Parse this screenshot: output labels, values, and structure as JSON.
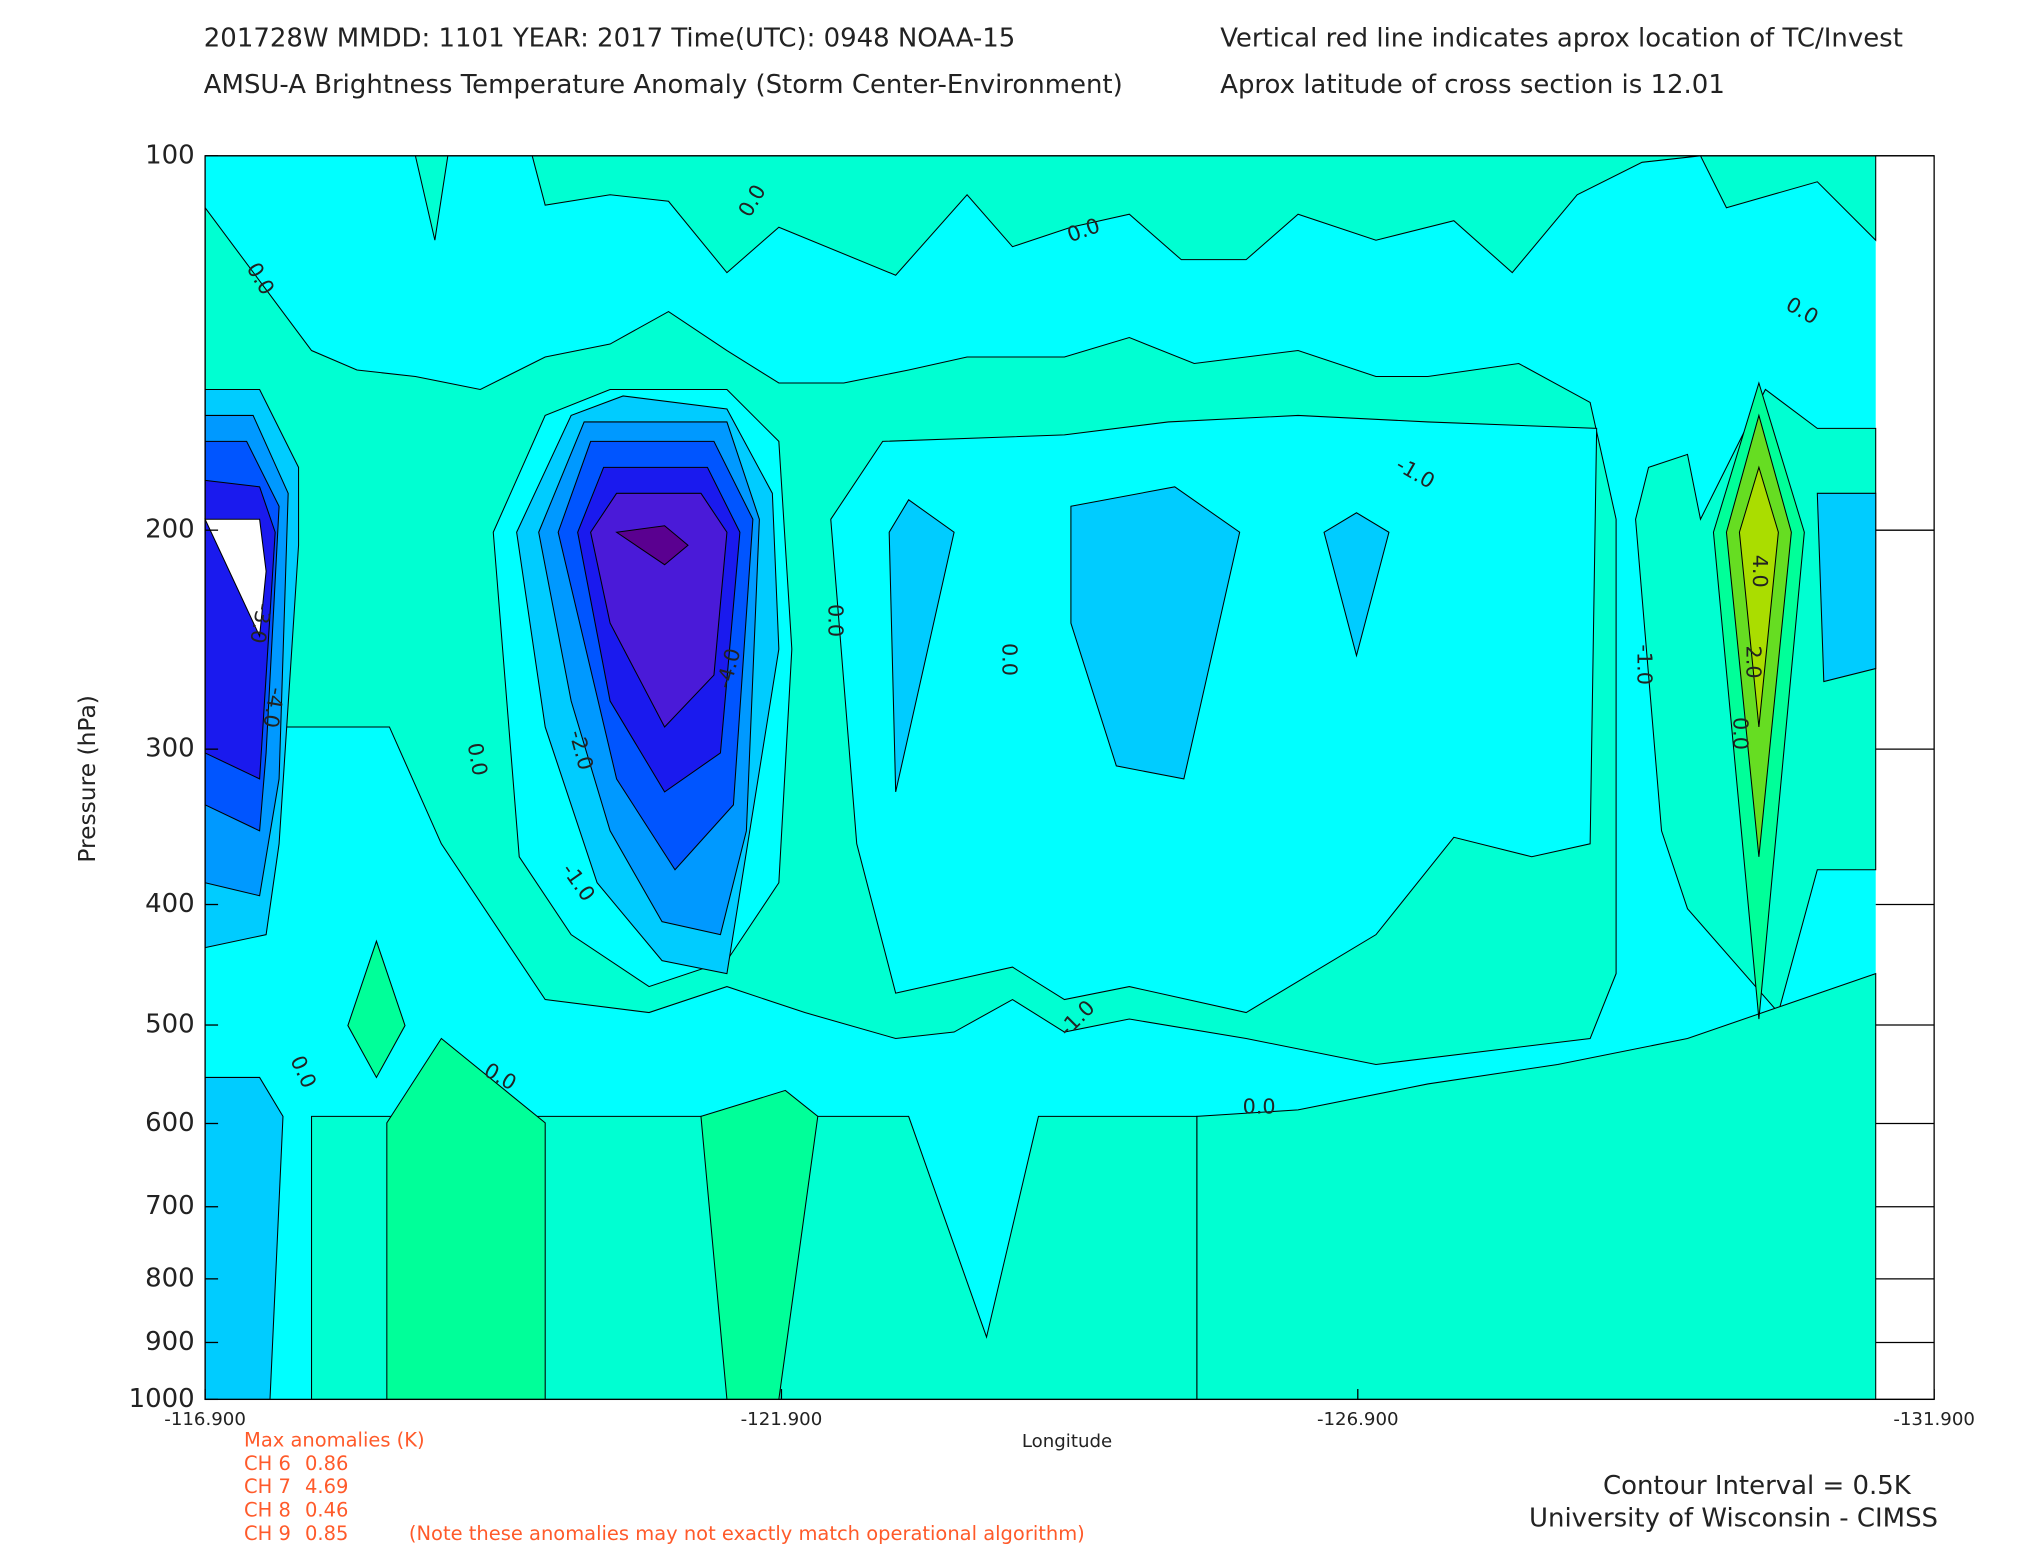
{
  "chart_data": {
    "type": "contour",
    "title_left_1": "201728W  MMDD: 1101 YEAR: 2017 Time(UTC): 0948 NOAA-15",
    "title_left_2": "AMSU-A Brightness Temperature Anomaly (Storm Center-Environment)",
    "title_right_1": "Vertical red line indicates aprox location of TC/Invest",
    "title_right_2": "Aprox latitude of cross section is 12.01",
    "ylabel": "Pressure (hPa)",
    "xlabel": "Longitude",
    "log_y": true,
    "ylim": [
      1000,
      100
    ],
    "yticks": [
      100,
      200,
      300,
      400,
      500,
      600,
      700,
      800,
      900,
      1000
    ],
    "xlim": [
      -116.9,
      -131.9
    ],
    "xticks": [
      {
        "value": -116.9,
        "label": "-116.900"
      },
      {
        "value": -121.9,
        "label": "-121.900"
      },
      {
        "value": -126.9,
        "label": "-126.900"
      },
      {
        "value": -131.9,
        "label": "-131.900"
      }
    ],
    "contour_labels": [
      "0.0",
      "0.0",
      "0.0",
      "0.0",
      "-1.0",
      "0.0",
      "-2.0",
      "-1.0",
      "-4.0",
      "0.0",
      "0.0",
      "-1.0",
      "0.0",
      "0.0",
      "0.0",
      "-1.0",
      "4.0",
      "2.0",
      "0.0",
      "-3.0",
      "-4.0"
    ],
    "max_anomalies_title": "Max anomalies (K)",
    "max_anomalies": [
      {
        "channel": "CH 6",
        "value": 0.86
      },
      {
        "channel": "CH 7",
        "value": 4.69
      },
      {
        "channel": "CH 8",
        "value": 0.46
      },
      {
        "channel": "CH 9",
        "value": 0.85
      }
    ],
    "note": "(Note these anomalies may not exactly match operational algorithm)",
    "contour_interval": "Contour Interval = 0.5K",
    "credit": "University of Wisconsin - CIMSS"
  }
}
